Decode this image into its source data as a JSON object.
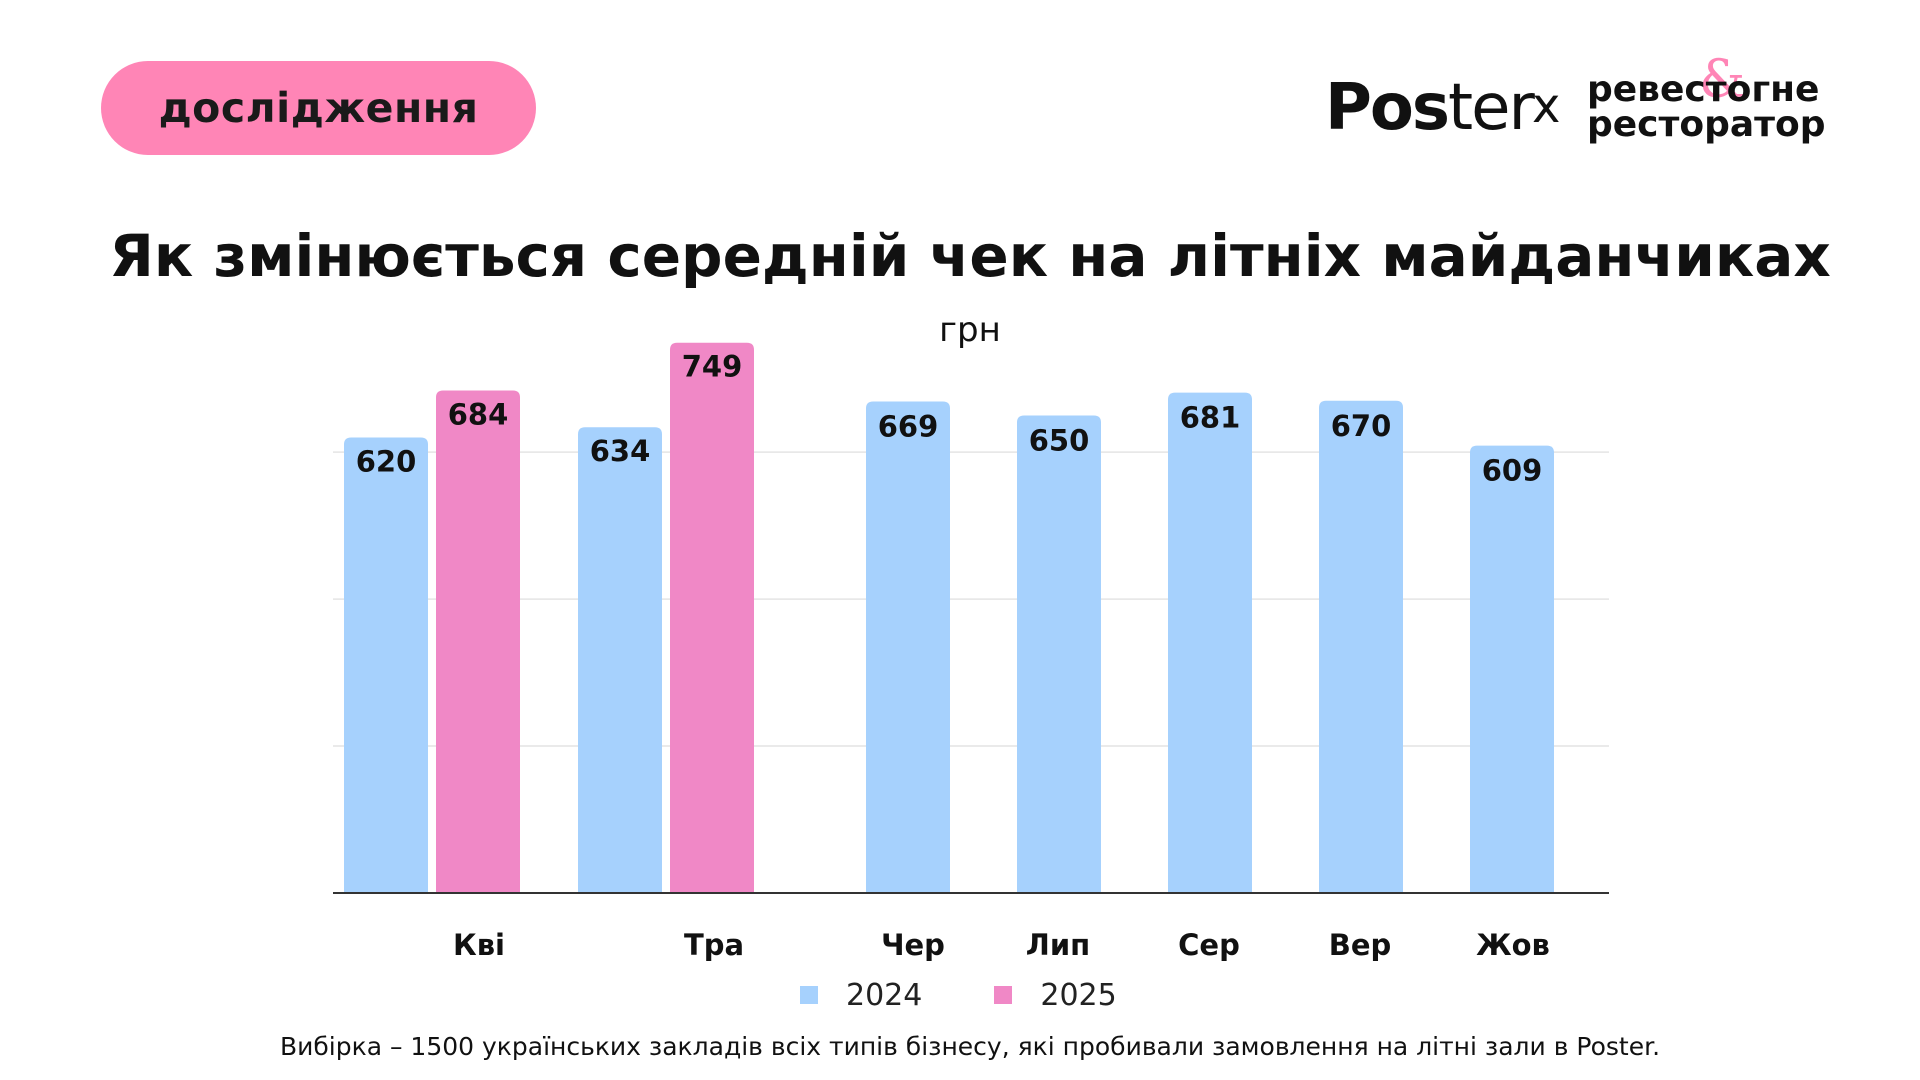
{
  "badge": {
    "label": "дослідження"
  },
  "logos": {
    "poster_bold": "Pos",
    "poster_light": "ter",
    "separator": "x",
    "partner_line1": "ревестогне",
    "partner_line2": "ресторатор",
    "partner_ampersand": "&"
  },
  "title": "Як змінюється середній чек на літніх майданчиках",
  "footnote": "Вибірка  – 1500 українських закладів всіх типів бізнесу, які пробивали замовлення на літні зали в Poster.",
  "colors": {
    "badge": "#ff85b6",
    "series_2024": "#a6d1fd",
    "series_2025": "#f088c6",
    "gridline": "#e4e4e4",
    "axis": "#333333"
  },
  "chart_data": {
    "type": "bar",
    "title": "Як змінюється середній чек на літніх майданчиках",
    "ylabel": "грн",
    "xlabel": "",
    "categories": [
      "Кві",
      "Тра",
      "Чер",
      "Лип",
      "Сер",
      "Вер",
      "Жов"
    ],
    "series": [
      {
        "name": "2024",
        "values": [
          620,
          634,
          669,
          650,
          681,
          670,
          609
        ]
      },
      {
        "name": "2025",
        "values": [
          684,
          749,
          null,
          null,
          null,
          null,
          null
        ]
      }
    ],
    "ylim": [
      0,
      750
    ],
    "gridlines": [
      200,
      400,
      600
    ],
    "grid": true,
    "data_labels": true,
    "legend": "bottom-center"
  }
}
